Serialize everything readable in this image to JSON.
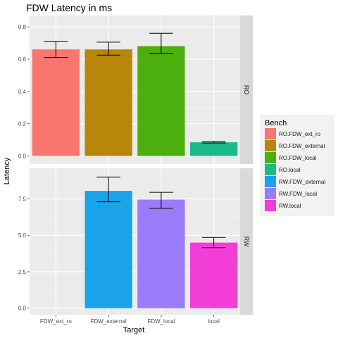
{
  "chart_data": {
    "type": "bar",
    "title": "FDW Latency in ms",
    "xlabel": "Target",
    "ylabel": "Latency",
    "categories": [
      "FDW_ext_ro",
      "FDW_external",
      "FDW_local",
      "local"
    ],
    "grid": true,
    "legend": {
      "title": "Bench",
      "placement": "right",
      "entries": [
        {
          "label": "RO.FDW_ext_ro",
          "color": "#F8766D"
        },
        {
          "label": "RO.FDW_external",
          "color": "#B8860B"
        },
        {
          "label": "RO.FDW_local",
          "color": "#4DAF0E"
        },
        {
          "label": "RO.local",
          "color": "#1CBA8A"
        },
        {
          "label": "RW.FDW_external",
          "color": "#1AA3E8"
        },
        {
          "label": "RW.FDW_local",
          "color": "#9B7CF8"
        },
        {
          "label": "RW.local",
          "color": "#F23ED7"
        }
      ]
    },
    "facets": [
      {
        "strip_label": "RO",
        "ylim": [
          -0.05,
          0.87
        ],
        "yticks": [
          0.0,
          0.2,
          0.4,
          0.6,
          0.8
        ],
        "ytick_labels": [
          "0.0",
          "0.2",
          "0.4",
          "0.6",
          "0.8"
        ],
        "bars": [
          {
            "category": "FDW_ext_ro",
            "bench": "RO.FDW_ext_ro",
            "value": 0.66,
            "err_low": 0.61,
            "err_high": 0.71,
            "color": "#F8766D"
          },
          {
            "category": "FDW_external",
            "bench": "RO.FDW_external",
            "value": 0.66,
            "err_low": 0.625,
            "err_high": 0.705,
            "color": "#B8860B"
          },
          {
            "category": "FDW_local",
            "bench": "RO.FDW_local",
            "value": 0.68,
            "err_low": 0.635,
            "err_high": 0.76,
            "color": "#4DAF0E"
          },
          {
            "category": "local",
            "bench": "RO.local",
            "value": 0.085,
            "err_low": 0.08,
            "err_high": 0.09,
            "color": "#1CBA8A"
          }
        ]
      },
      {
        "strip_label": "RW",
        "ylim": [
          -0.45,
          9.6
        ],
        "yticks": [
          0.0,
          2.5,
          5.0,
          7.5
        ],
        "ytick_labels": [
          "0.0",
          "2.5",
          "5.0",
          "7.5"
        ],
        "bars": [
          {
            "category": "FDW_external",
            "bench": "RW.FDW_external",
            "value": 8.05,
            "err_low": 7.3,
            "err_high": 9.0,
            "color": "#1AA3E8"
          },
          {
            "category": "FDW_local",
            "bench": "RW.FDW_local",
            "value": 7.45,
            "err_low": 6.85,
            "err_high": 7.95,
            "color": "#9B7CF8"
          },
          {
            "category": "local",
            "bench": "RW.local",
            "value": 4.5,
            "err_low": 4.15,
            "err_high": 4.85,
            "color": "#F23ED7"
          }
        ]
      }
    ]
  }
}
